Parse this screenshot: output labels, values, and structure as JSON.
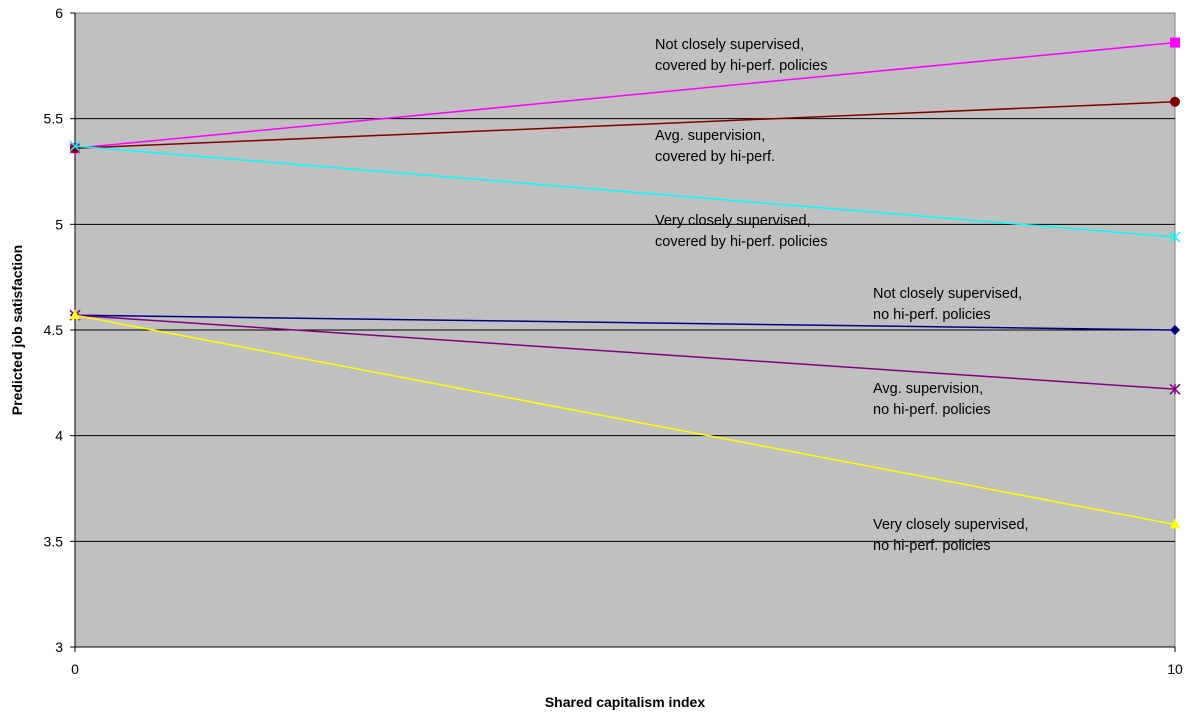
{
  "chart_data": {
    "type": "line",
    "title": "",
    "xlabel": "Shared capitalism index",
    "ylabel": "Predicted job satisfaction",
    "x": [
      0,
      10
    ],
    "xticks": [
      "0",
      "10"
    ],
    "yticks": [
      "3",
      "3.5",
      "4",
      "4.5",
      "5",
      "5.5",
      "6"
    ],
    "ylim": [
      3,
      6
    ],
    "grid": true,
    "plot_background": "#c0c0c0",
    "legend": "none",
    "series": [
      {
        "values": [
          5.36,
          5.86
        ],
        "color": "#ff00ff",
        "marker": "square"
      },
      {
        "values": [
          5.36,
          5.58
        ],
        "color": "#800000",
        "marker": "circle"
      },
      {
        "values": [
          5.37,
          4.94
        ],
        "color": "#00ffff",
        "marker": "x"
      },
      {
        "values": [
          4.57,
          4.5
        ],
        "color": "#000080",
        "marker": "diamond"
      },
      {
        "values": [
          4.57,
          4.22
        ],
        "color": "#800080",
        "marker": "star"
      },
      {
        "values": [
          4.57,
          3.58
        ],
        "color": "#ffff00",
        "marker": "triangle"
      }
    ],
    "annotations": [
      {
        "lines": [
          "Not closely supervised,",
          "covered by hi-perf. policies"
        ]
      },
      {
        "lines": [
          "Avg. supervision,",
          "covered by hi-perf."
        ]
      },
      {
        "lines": [
          "Very closely supervised,",
          "covered by hi-perf. policies"
        ]
      },
      {
        "lines": [
          "Not closely supervised,",
          "no hi-perf. policies"
        ]
      },
      {
        "lines": [
          "Avg. supervision,",
          "no hi-perf. policies"
        ]
      },
      {
        "lines": [
          "Very closely supervised,",
          "no hi-perf. policies"
        ]
      }
    ]
  }
}
